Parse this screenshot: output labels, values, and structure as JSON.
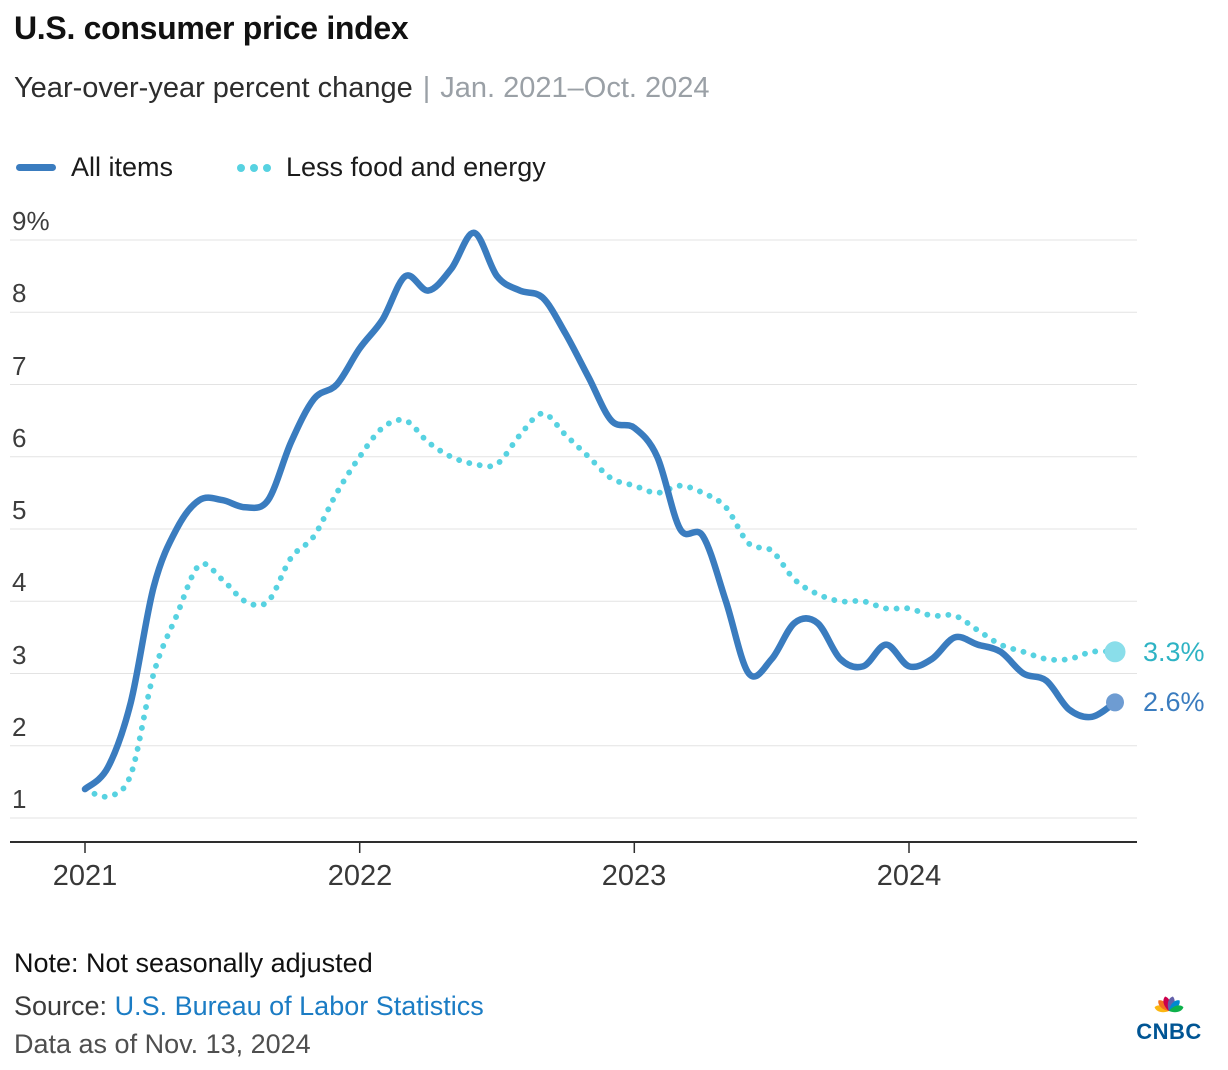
{
  "header": {
    "title": "U.S. consumer price index",
    "subtitle": "Year-over-year percent change",
    "subtitle_divider": "|",
    "subtitle_range": "Jan. 2021–Oct. 2024"
  },
  "footer": {
    "note": "Note: Not seasonally adjusted",
    "source_prefix": "Source: ",
    "source_link": "U.S. Bureau of Labor Statistics",
    "data_as_of": "Data as of Nov. 13, 2024",
    "logo_text": "CNBC"
  },
  "colors": {
    "all_items_blue": "#3A7CBF",
    "core_cyan": "#57D2E1",
    "gridline": "#E3E3E3",
    "axis": "#2E2E2E",
    "link": "#1B7CC4",
    "subtitle_gray": "#9AA0A6"
  },
  "chart_data": {
    "type": "line",
    "title": "U.S. consumer price index",
    "subtitle": "Year-over-year percent change",
    "x_range_label": "Jan. 2021–Oct. 2024",
    "x_unit": "month",
    "grid": "horizontal",
    "legend_position": "top-left",
    "ylim": [
      0.6,
      9.4
    ],
    "x": [
      "2021-01",
      "2021-02",
      "2021-03",
      "2021-04",
      "2021-05",
      "2021-06",
      "2021-07",
      "2021-08",
      "2021-09",
      "2021-10",
      "2021-11",
      "2021-12",
      "2022-01",
      "2022-02",
      "2022-03",
      "2022-04",
      "2022-05",
      "2022-06",
      "2022-07",
      "2022-08",
      "2022-09",
      "2022-10",
      "2022-11",
      "2022-12",
      "2023-01",
      "2023-02",
      "2023-03",
      "2023-04",
      "2023-05",
      "2023-06",
      "2023-07",
      "2023-08",
      "2023-09",
      "2023-10",
      "2023-11",
      "2023-12",
      "2024-01",
      "2024-02",
      "2024-03",
      "2024-04",
      "2024-05",
      "2024-06",
      "2024-07",
      "2024-08",
      "2024-09",
      "2024-10"
    ],
    "series": [
      {
        "name": "All items",
        "style": "solid",
        "color": "#3A7CBF",
        "marker_color": "#6E9CD2",
        "end_label": "2.6%",
        "end_label_color": "#3A7CBF",
        "values": [
          1.4,
          1.7,
          2.6,
          4.2,
          5.0,
          5.4,
          5.4,
          5.3,
          5.4,
          6.2,
          6.8,
          7.0,
          7.5,
          7.9,
          8.5,
          8.3,
          8.6,
          9.1,
          8.5,
          8.3,
          8.2,
          7.7,
          7.1,
          6.5,
          6.4,
          6.0,
          5.0,
          4.9,
          4.0,
          3.0,
          3.2,
          3.7,
          3.7,
          3.2,
          3.1,
          3.4,
          3.1,
          3.2,
          3.5,
          3.4,
          3.3,
          3.0,
          2.9,
          2.5,
          2.4,
          2.6
        ]
      },
      {
        "name": "Less food and energy",
        "style": "dotted",
        "color": "#57D2E1",
        "marker_color": "#8ADEEA",
        "end_label": "3.3%",
        "end_label_color": "#2EB3C4",
        "values": [
          1.4,
          1.3,
          1.6,
          3.0,
          3.8,
          4.5,
          4.3,
          4.0,
          4.0,
          4.6,
          4.9,
          5.5,
          6.0,
          6.4,
          6.5,
          6.2,
          6.0,
          5.9,
          5.9,
          6.3,
          6.6,
          6.3,
          6.0,
          5.7,
          5.6,
          5.5,
          5.6,
          5.5,
          5.3,
          4.8,
          4.7,
          4.3,
          4.1,
          4.0,
          4.0,
          3.9,
          3.9,
          3.8,
          3.8,
          3.6,
          3.4,
          3.3,
          3.2,
          3.2,
          3.3,
          3.3
        ]
      }
    ],
    "yticks": [
      {
        "value": 9,
        "label": "9%"
      },
      {
        "value": 8,
        "label": "8"
      },
      {
        "value": 7,
        "label": "7"
      },
      {
        "value": 6,
        "label": "6"
      },
      {
        "value": 5,
        "label": "5"
      },
      {
        "value": 4,
        "label": "4"
      },
      {
        "value": 3,
        "label": "3"
      },
      {
        "value": 2,
        "label": "2"
      },
      {
        "value": 1,
        "label": "1"
      }
    ],
    "xticks": [
      {
        "index": 0,
        "label": "2021"
      },
      {
        "index": 12,
        "label": "2022"
      },
      {
        "index": 24,
        "label": "2023"
      },
      {
        "index": 36,
        "label": "2024"
      }
    ]
  }
}
